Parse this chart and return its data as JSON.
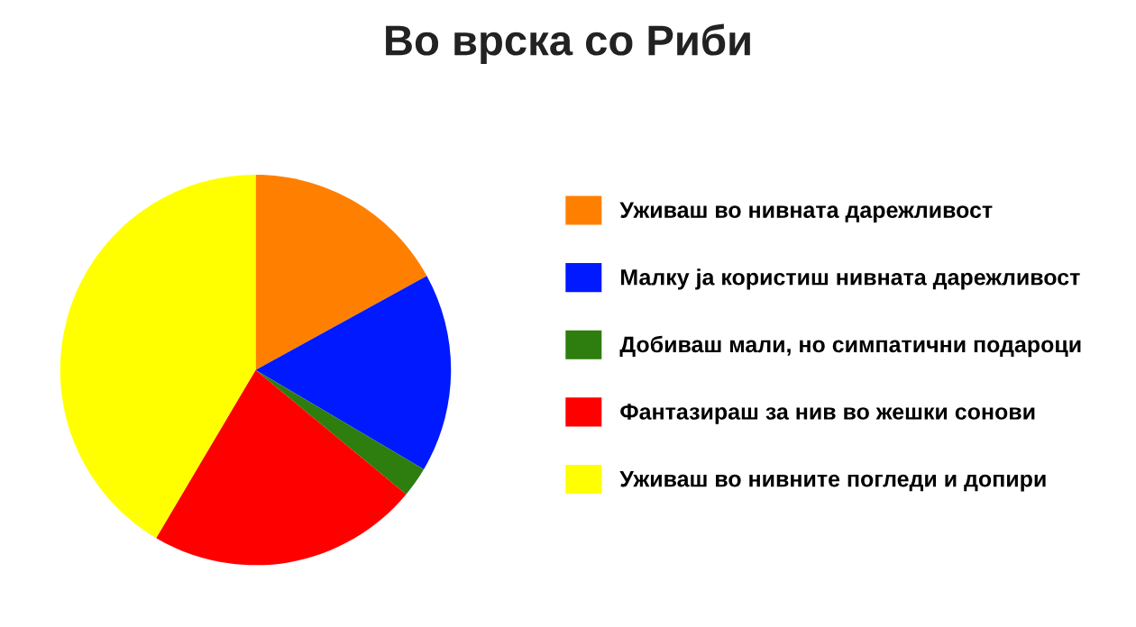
{
  "chart_data": {
    "type": "pie",
    "title": "Во врска со Риби",
    "categories": [
      "Уживаш во нивната дарежливост",
      "Малку ја користиш нивната дарежливост",
      "Добиваш мали, но симпатични подароци",
      "Фантазираш за нив во жешки сонови",
      "Уживаш во нивните погледи и допири"
    ],
    "values": [
      17,
      16.5,
      2.5,
      22.5,
      41.5
    ],
    "colors": [
      "#ff8000",
      "#0019ff",
      "#2e7d0f",
      "#ff0000",
      "#ffff00"
    ],
    "legend": "right"
  }
}
